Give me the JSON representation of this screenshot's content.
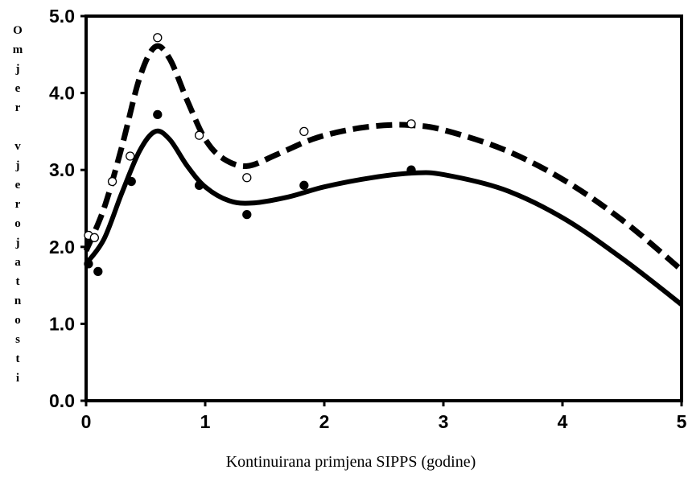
{
  "chart_data": {
    "type": "line",
    "title": "",
    "xlabel": "Kontinuirana primjena SIPPS (godine)",
    "ylabel": "Omjer vjerojatnosti",
    "xlim": [
      0,
      5
    ],
    "ylim": [
      0,
      5
    ],
    "x_ticks": [
      "0",
      "1",
      "2",
      "3",
      "4",
      "5"
    ],
    "y_ticks": [
      "0.0",
      "1.0",
      "2.0",
      "3.0",
      "4.0",
      "5.0"
    ],
    "grid": false,
    "legend": "none",
    "series": [
      {
        "style": "dashed",
        "color": "#000000",
        "curve": [
          [
            0.0,
            1.95
          ],
          [
            0.15,
            2.5
          ],
          [
            0.3,
            3.3
          ],
          [
            0.45,
            4.2
          ],
          [
            0.58,
            4.6
          ],
          [
            0.7,
            4.45
          ],
          [
            0.85,
            3.9
          ],
          [
            1.0,
            3.4
          ],
          [
            1.15,
            3.15
          ],
          [
            1.35,
            3.05
          ],
          [
            1.6,
            3.2
          ],
          [
            1.9,
            3.4
          ],
          [
            2.2,
            3.52
          ],
          [
            2.5,
            3.58
          ],
          [
            2.75,
            3.58
          ],
          [
            3.0,
            3.52
          ],
          [
            3.5,
            3.27
          ],
          [
            4.0,
            2.88
          ],
          [
            4.5,
            2.35
          ],
          [
            5.0,
            1.7
          ]
        ],
        "points": {
          "marker": "open-circle",
          "x": [
            0.02,
            0.07,
            0.22,
            0.37,
            0.6,
            0.95,
            1.35,
            1.83,
            2.73
          ],
          "y": [
            2.15,
            2.12,
            2.85,
            3.18,
            4.72,
            3.45,
            2.9,
            3.5,
            3.6
          ]
        }
      },
      {
        "style": "solid",
        "color": "#000000",
        "curve": [
          [
            0.0,
            1.78
          ],
          [
            0.15,
            2.1
          ],
          [
            0.3,
            2.7
          ],
          [
            0.45,
            3.25
          ],
          [
            0.58,
            3.5
          ],
          [
            0.7,
            3.4
          ],
          [
            0.85,
            3.05
          ],
          [
            1.0,
            2.78
          ],
          [
            1.2,
            2.6
          ],
          [
            1.4,
            2.57
          ],
          [
            1.7,
            2.65
          ],
          [
            2.0,
            2.78
          ],
          [
            2.4,
            2.9
          ],
          [
            2.75,
            2.96
          ],
          [
            3.0,
            2.94
          ],
          [
            3.5,
            2.75
          ],
          [
            4.0,
            2.38
          ],
          [
            4.5,
            1.85
          ],
          [
            5.0,
            1.25
          ]
        ],
        "points": {
          "marker": "filled-circle",
          "x": [
            0.02,
            0.1,
            0.38,
            0.6,
            0.95,
            1.35,
            1.83,
            2.73
          ],
          "y": [
            1.78,
            1.68,
            2.85,
            3.72,
            2.8,
            2.42,
            2.8,
            3.0
          ]
        }
      }
    ]
  }
}
